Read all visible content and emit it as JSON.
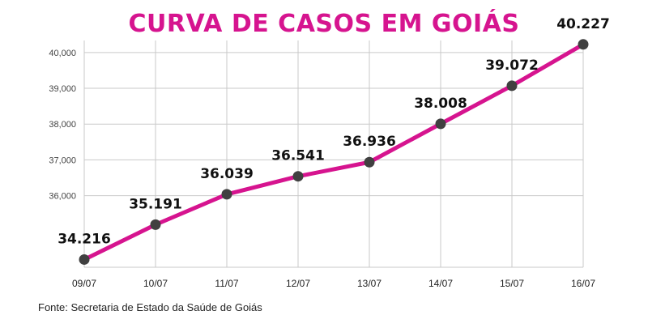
{
  "title": "CURVA DE CASOS EM GOIÁS",
  "source": "Fonte: Secretaria de Estado da Saúde de Goiás",
  "colors": {
    "line": "#d6148f",
    "marker": "#404040",
    "grid": "#c9c9c9",
    "title": "#d6148f"
  },
  "chart_data": {
    "type": "line",
    "title": "CURVA DE CASOS EM GOIÁS",
    "categories": [
      "09/07",
      "10/07",
      "11/07",
      "12/07",
      "13/07",
      "14/07",
      "15/07",
      "16/07"
    ],
    "values": [
      34216,
      35191,
      36039,
      36541,
      36936,
      38008,
      39072,
      40227
    ],
    "data_labels": [
      "34.216",
      "35.191",
      "36.039",
      "36.541",
      "36.936",
      "38.008",
      "39.072",
      "40.227"
    ],
    "y_ticks": [
      "36,000",
      "37,000",
      "38,000",
      "39,000",
      "40,000"
    ],
    "y_tick_values": [
      36000,
      37000,
      38000,
      39000,
      40000
    ],
    "ylim": [
      34000,
      40200
    ],
    "xlabel": "",
    "ylabel": "",
    "grid": true,
    "legend": "none"
  }
}
